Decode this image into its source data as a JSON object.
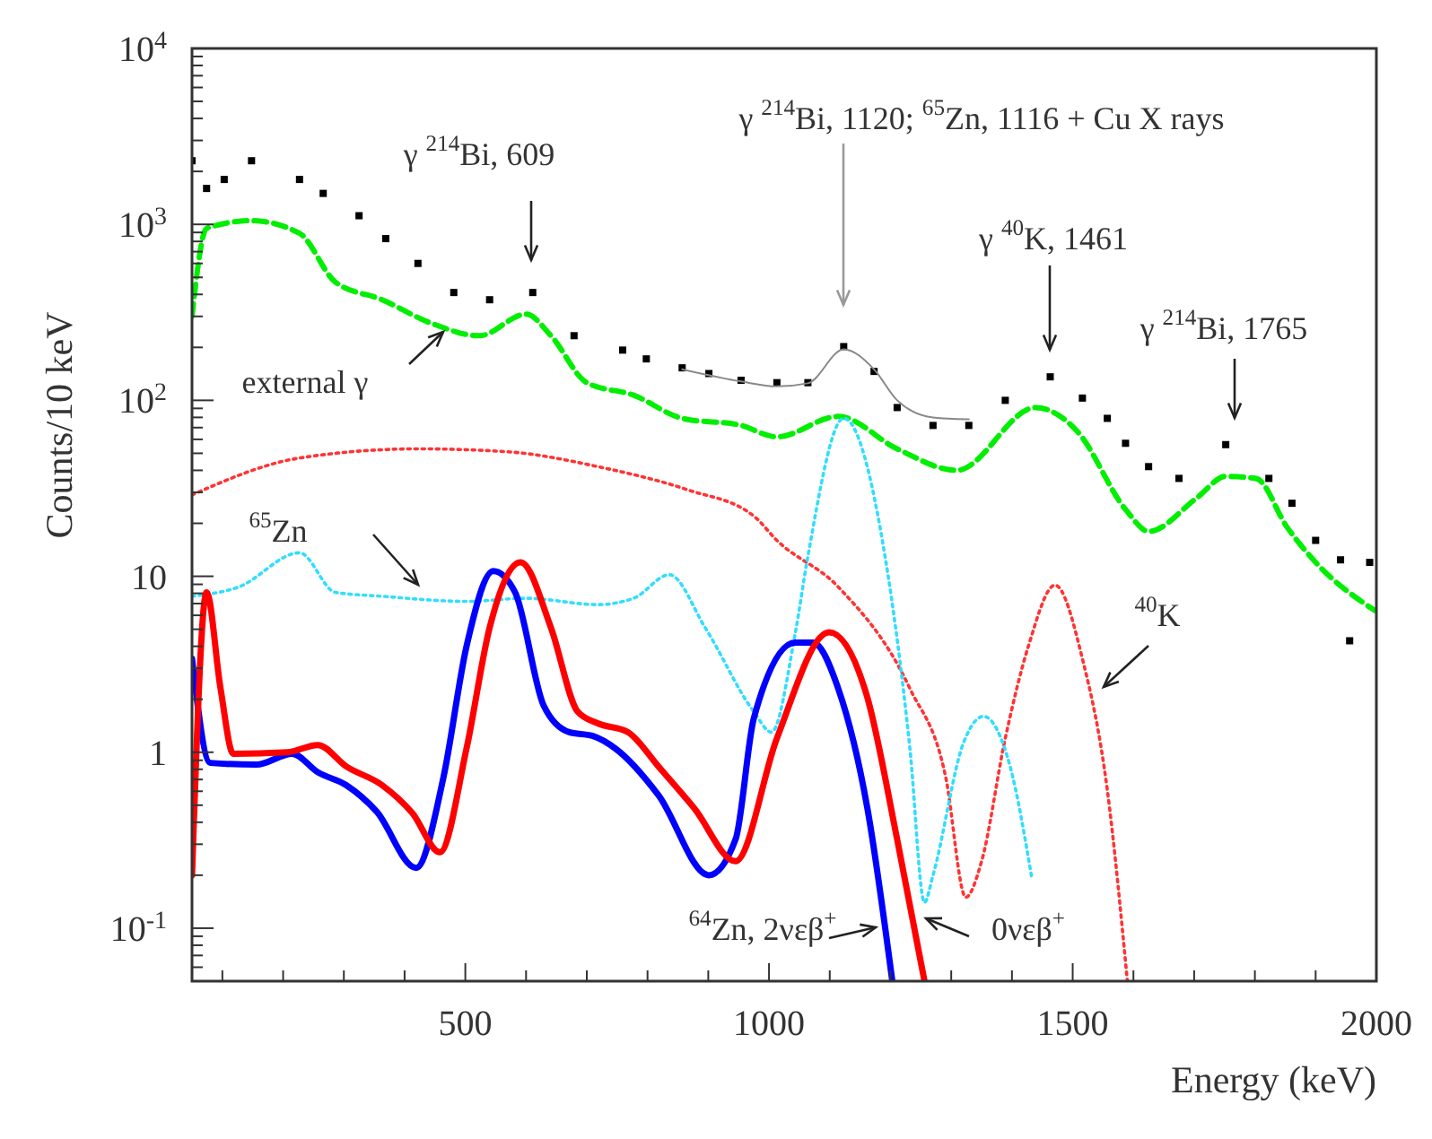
{
  "chart_data": {
    "type": "line",
    "xlabel": "Energy (keV)",
    "ylabel": "Counts/10 keV",
    "log": "y",
    "grid": false,
    "xlim": [
      50,
      2000
    ],
    "ylim": [
      0.05,
      10000
    ],
    "xticks": [
      {
        "value": 100,
        "label": null
      },
      {
        "value": 200,
        "label": null
      },
      {
        "value": 300,
        "label": null
      },
      {
        "value": 400,
        "label": null
      },
      500,
      {
        "value": 600,
        "label": null
      },
      {
        "value": 700,
        "label": null
      },
      {
        "value": 800,
        "label": null
      },
      {
        "value": 900,
        "label": null
      },
      1000,
      {
        "value": 1100,
        "label": null
      },
      {
        "value": 1200,
        "label": null
      },
      {
        "value": 1300,
        "label": null
      },
      {
        "value": 1400,
        "label": null
      },
      1500,
      {
        "value": 1600,
        "label": null
      },
      {
        "value": 1700,
        "label": null
      },
      {
        "value": 1800,
        "label": null
      },
      {
        "value": 1900,
        "label": null
      },
      2000
    ],
    "yticks": [
      {
        "value": 0.06,
        "label": null
      },
      {
        "value": 0.07,
        "label": null
      },
      {
        "value": 0.08,
        "label": null
      },
      {
        "value": 0.09,
        "label": null
      },
      {
        "value": 0.1,
        "label": "10$^{-1}$"
      },
      {
        "value": 0.2,
        "label": null
      },
      {
        "value": 0.3,
        "label": null
      },
      {
        "value": 0.4,
        "label": null
      },
      {
        "value": 0.5,
        "label": null
      },
      {
        "value": 0.6,
        "label": null
      },
      {
        "value": 0.7,
        "label": null
      },
      {
        "value": 0.8,
        "label": null
      },
      {
        "value": 0.9,
        "label": null
      },
      1,
      {
        "value": 2,
        "label": null
      },
      {
        "value": 3,
        "label": null
      },
      {
        "value": 4,
        "label": null
      },
      {
        "value": 5,
        "label": null
      },
      {
        "value": 6,
        "label": null
      },
      {
        "value": 7,
        "label": null
      },
      {
        "value": 8,
        "label": null
      },
      {
        "value": 9,
        "label": null
      },
      10,
      {
        "value": 20,
        "label": null
      },
      {
        "value": 30,
        "label": null
      },
      {
        "value": 40,
        "label": null
      },
      {
        "value": 50,
        "label": null
      },
      {
        "value": 60,
        "label": null
      },
      {
        "value": 70,
        "label": null
      },
      {
        "value": 80,
        "label": null
      },
      {
        "value": 90,
        "label": null
      },
      {
        "value": 100,
        "label": "10$^{2}$"
      },
      {
        "value": 200,
        "label": null
      },
      {
        "value": 300,
        "label": null
      },
      {
        "value": 400,
        "label": null
      },
      {
        "value": 500,
        "label": null
      },
      {
        "value": 600,
        "label": null
      },
      {
        "value": 700,
        "label": null
      },
      {
        "value": 800,
        "label": null
      },
      {
        "value": 900,
        "label": null
      },
      {
        "value": 1000,
        "label": "10$^{3}$"
      },
      {
        "value": 2000,
        "label": null
      },
      {
        "value": 3000,
        "label": null
      },
      {
        "value": 4000,
        "label": null
      },
      {
        "value": 5000,
        "label": null
      },
      {
        "value": 6000,
        "label": null
      },
      {
        "value": 7000,
        "label": null
      },
      {
        "value": 8000,
        "label": null
      },
      {
        "value": 9000,
        "label": null
      },
      {
        "value": 10000,
        "label": "10$^{4}$"
      }
    ],
    "series": [
      {
        "type": "scatter",
        "marker": "square",
        "color": "#000000",
        "x": [
          50,
          74,
          103,
          148,
          227,
          266,
          325,
          369,
          422,
          481,
          540,
          611,
          679,
          759,
          798,
          857,
          901,
          954,
          1013,
          1064,
          1123,
          1173,
          1211,
          1270,
          1329,
          1389,
          1463,
          1516,
          1557,
          1587,
          1625,
          1675,
          1752,
          1823,
          1861,
          1900,
          1941,
          1956,
          1989
        ],
        "values": [
          2300,
          1600,
          1800,
          2300,
          1800,
          1500,
          1120,
          830,
          600,
          410,
          373,
          410,
          233,
          193,
          172,
          153,
          142,
          130,
          126,
          126,
          202,
          146,
          91,
          72,
          72,
          100,
          136,
          103,
          79,
          57,
          42,
          36,
          56,
          36,
          26,
          16,
          12.4,
          4.3,
          12
        ]
      },
      {
        "line_style": "dashed",
        "color": "#00ee00",
        "x": [
          50,
          74,
          148,
          227,
          286,
          363,
          443,
          523,
          600,
          641,
          700,
          777,
          857,
          954,
          1013,
          1114,
          1211,
          1309,
          1439,
          1507,
          1587,
          1625,
          1705,
          1752,
          1802,
          1853,
          1900,
          1997
        ],
        "values": [
          300,
          950,
          1050,
          890,
          470,
          373,
          275,
          233,
          309,
          233,
          126,
          107,
          79,
          72,
          62,
          81,
          53,
          40,
          91,
          67,
          24,
          18,
          28,
          37,
          36,
          19,
          12,
          6.4
        ]
      },
      {
        "line_style": "solid",
        "color": "#888888",
        "x": [
          857,
          954,
          1013,
          1064,
          1123,
          1173,
          1211,
          1270,
          1329
        ],
        "values": [
          150,
          128,
          120,
          125,
          195,
          150,
          100,
          80,
          78
        ]
      },
      {
        "line_style": "dotted",
        "color": "#ff3333",
        "x": [
          50,
          227,
          422,
          570,
          718,
          866,
          975,
          1013,
          1114,
          1232,
          1291,
          1324,
          1350,
          1389,
          1427,
          1471,
          1516,
          1557,
          1590
        ],
        "values": [
          29,
          47,
          53,
          51,
          42,
          31,
          22,
          16,
          8.7,
          2.3,
          0.72,
          0.15,
          0.24,
          1.2,
          4.0,
          8.9,
          3.4,
          0.61,
          0.05
        ]
      },
      {
        "line_style": "dotted",
        "color": "#33ddff",
        "x": [
          50,
          127,
          227,
          286,
          363,
          502,
          600,
          718,
          777,
          836,
          895,
          975,
          1004,
          1043,
          1064,
          1123,
          1191,
          1232,
          1256,
          1270,
          1321,
          1353,
          1397,
          1433
        ],
        "values": [
          7.7,
          8.7,
          13.6,
          8.1,
          7.7,
          7.2,
          7.5,
          6.9,
          7.5,
          10.2,
          5.1,
          1.7,
          1.3,
          4.7,
          13,
          79,
          13,
          1.05,
          0.14,
          0.2,
          1.15,
          1.6,
          0.83,
          0.19
        ]
      },
      {
        "line_style": "solid",
        "color": "#0000ff",
        "x": [
          50,
          80,
          156,
          215,
          257,
          304,
          354,
          419,
          464,
          502,
          546,
          582,
          629,
          671,
          709,
          747,
          818,
          901,
          945,
          975,
          1043,
          1072,
          1114,
          1162,
          1203
        ],
        "values": [
          3.4,
          0.87,
          0.85,
          0.98,
          0.77,
          0.65,
          0.46,
          0.22,
          0.72,
          4.0,
          10.7,
          8.1,
          1.84,
          1.3,
          1.24,
          1.05,
          0.57,
          0.2,
          0.32,
          1.56,
          4.2,
          4.2,
          2.3,
          0.48,
          0.05
        ]
      },
      {
        "line_style": "solid",
        "color": "#ff0000",
        "x": [
          50,
          74,
          97,
          118,
          207,
          257,
          304,
          363,
          413,
          458,
          502,
          540,
          591,
          641,
          685,
          718,
          768,
          818,
          877,
          945,
          1013,
          1099,
          1161,
          1211,
          1256
        ],
        "values": [
          0.2,
          8.1,
          2.3,
          0.98,
          1.0,
          1.1,
          0.83,
          0.65,
          0.45,
          0.27,
          1.05,
          5.1,
          12,
          5.1,
          1.7,
          1.46,
          1.3,
          0.83,
          0.48,
          0.24,
          1.2,
          4.8,
          2.1,
          0.32,
          0.05
        ]
      }
    ],
    "annotations": [
      "γ $^{214}$Bi, 609",
      "γ $^{214}$Bi, 1120; $^{65}$Zn, 1116 + Cu X rays",
      "γ $^{40}$K, 1461",
      "γ $^{214}$Bi, 1765",
      "external γ",
      "$^{65}$Zn",
      "$^{40}$K",
      "$^{64}$Zn, 2νεβ$^{+}$",
      "0νεβ$^{+}$"
    ]
  }
}
